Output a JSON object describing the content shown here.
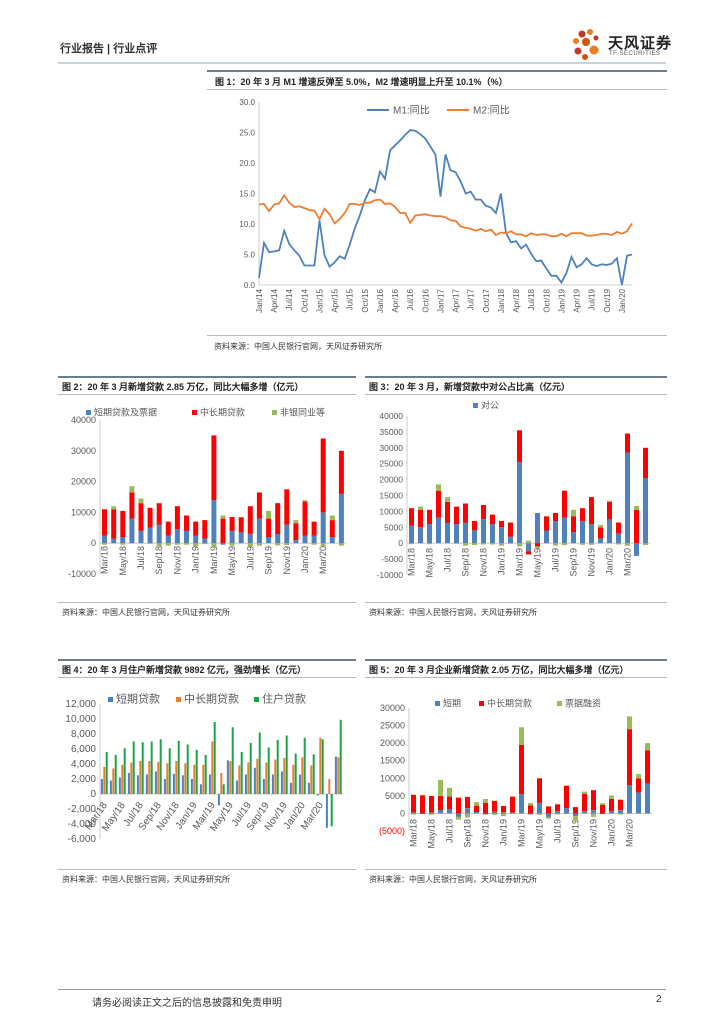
{
  "header": {
    "left": "行业报告 | 行业点评",
    "logo_text": "天风证券",
    "logo_sub": "TF SECURITIES"
  },
  "source_text": "资料来源：中国人民银行官网，天风证券研究所",
  "footer": {
    "disclaimer": "请务必阅读正文之后的信息披露和免责申明",
    "page": "2"
  },
  "colors": {
    "blue": "#4e81bd",
    "orange": "#ed7d31",
    "red": "#ff0000",
    "green": "#9bbb59",
    "dgreen": "#1ba34a"
  },
  "chart_data": [
    {
      "id": "fig1",
      "type": "line",
      "title": "图 1：20 年 3 月 M1 增速反弹至 5.0%，M2 增速明显上升至 10.1%（%）",
      "ylim": [
        0,
        30
      ],
      "yticks": [
        "0.0",
        "5.0",
        "10.0",
        "15.0",
        "20.0",
        "25.0",
        "30.0"
      ],
      "xticks": [
        "Jan/14",
        "Apr/14",
        "Jul/14",
        "Oct/14",
        "Jan/15",
        "Apr/15",
        "Jul/15",
        "Oct/15",
        "Jan/16",
        "Apr/16",
        "Jul/16",
        "Oct/16",
        "Jan/17",
        "Apr/17",
        "Jul/17",
        "Oct/17",
        "Jan/18",
        "Apr/18",
        "Jul/18",
        "Oct/18",
        "Jan/19",
        "Apr/19",
        "Jul/19",
        "Oct/19",
        "Jan/20"
      ],
      "legend": "top",
      "series": [
        {
          "name": "M1:同比",
          "color": "#4e81bd",
          "values": [
            1.2,
            6.9,
            5.4,
            5.5,
            5.7,
            8.9,
            6.7,
            5.7,
            4.8,
            3.2,
            3.2,
            3.2,
            10.6,
            4.9,
            3.0,
            3.7,
            4.7,
            4.3,
            6.6,
            9.3,
            11.4,
            13.9,
            15.7,
            15.2,
            18.6,
            17.4,
            22.1,
            22.9,
            23.7,
            24.6,
            25.4,
            25.3,
            24.7,
            24.0,
            22.7,
            21.4,
            14.5,
            21.4,
            18.8,
            18.5,
            17.0,
            15.0,
            15.3,
            14.0,
            14.0,
            13.0,
            12.7,
            11.8,
            15.0,
            8.5,
            7.0,
            7.2,
            6.0,
            6.6,
            5.1,
            3.9,
            4.0,
            2.7,
            1.5,
            1.5,
            0.4,
            2.0,
            4.6,
            2.9,
            3.4,
            4.4,
            3.4,
            3.1,
            3.4,
            3.3,
            3.5,
            4.4,
            0.0,
            4.8,
            5.0
          ]
        },
        {
          "name": "M2:同比",
          "color": "#ed7d31",
          "values": [
            13.2,
            13.3,
            12.1,
            13.2,
            13.4,
            14.7,
            13.5,
            12.8,
            12.9,
            12.6,
            12.3,
            12.2,
            10.8,
            12.5,
            11.6,
            10.1,
            10.8,
            11.8,
            13.3,
            13.3,
            13.1,
            13.5,
            13.5,
            13.9,
            14.0,
            13.3,
            13.4,
            12.8,
            11.8,
            11.8,
            10.2,
            11.4,
            11.5,
            11.6,
            11.4,
            11.3,
            11.3,
            11.1,
            10.6,
            10.5,
            9.6,
            9.4,
            9.2,
            8.9,
            9.2,
            8.8,
            9.1,
            8.2,
            8.6,
            8.5,
            8.8,
            8.3,
            8.3,
            8.0,
            8.5,
            8.2,
            8.3,
            8.3,
            8.0,
            8.0,
            8.4,
            8.0,
            8.5,
            8.5,
            8.5,
            8.1,
            8.1,
            8.2,
            8.4,
            8.4,
            8.2,
            8.7,
            8.4,
            8.8,
            10.1
          ]
        }
      ]
    },
    {
      "id": "fig2",
      "type": "bar",
      "title": "图 2：20 年 3 月新增贷款 2.85 万亿，同比大幅多增（亿元）",
      "ylim": [
        -10000,
        40000
      ],
      "yticks": [
        "-10000",
        "0",
        "10000",
        "20000",
        "30000",
        "40000"
      ],
      "xticks": [
        "Mar/18",
        "May/18",
        "Jul/18",
        "Sep/18",
        "Nov/18",
        "Jan/19",
        "Mar/19",
        "May/19",
        "Jul/19",
        "Sep/19",
        "Nov/19",
        "Jan/20",
        "Mar/20"
      ],
      "legend": "top",
      "series": [
        {
          "name": "短期贷款及票据",
          "color": "#4e81bd",
          "values": [
            2500,
            1500,
            2000,
            8000,
            4000,
            5000,
            6000,
            2500,
            4500,
            4000,
            2500,
            1500,
            14000,
            -500,
            4000,
            3500,
            3000,
            8000,
            2000,
            3000,
            6000,
            1000,
            2500,
            2500,
            10000,
            2000,
            16000
          ]
        },
        {
          "name": "中长期贷款",
          "color": "#ff0000",
          "values": [
            8500,
            9500,
            8500,
            8500,
            9000,
            6500,
            7000,
            4500,
            7500,
            5000,
            4500,
            6000,
            21000,
            8000,
            4500,
            5000,
            9000,
            8500,
            6000,
            10000,
            11500,
            5500,
            11000,
            4500,
            24000,
            5500,
            14000
          ]
        },
        {
          "name": "非银同业等",
          "color": "#9bbb59",
          "values": [
            -500,
            1000,
            -500,
            2000,
            1500,
            -200,
            -1000,
            -800,
            -500,
            -500,
            -1000,
            -300,
            -1200,
            1000,
            -800,
            0,
            -1000,
            -800,
            2500,
            -700,
            -600,
            1000,
            500,
            -500,
            -1000,
            1500,
            -800
          ]
        }
      ]
    },
    {
      "id": "fig3",
      "type": "bar",
      "title": "图 3：20 年 3 月，新增贷款中对公占比高（亿元）",
      "ylim": [
        -10000,
        40000
      ],
      "yticks": [
        "-10000",
        "-5000",
        "0",
        "5000",
        "10000",
        "15000",
        "20000",
        "25000",
        "30000",
        "35000",
        "40000"
      ],
      "xticks": [
        "Mar/18",
        "May/18",
        "Jul/18",
        "Sep/18",
        "Nov/18",
        "Jan/19",
        "Mar/19",
        "May/19",
        "Jul/19",
        "Sep/19",
        "Nov/19",
        "Jan/20",
        "Mar/20"
      ],
      "legend": "top",
      "series": [
        {
          "name": "对公",
          "color": "#4e81bd",
          "values": [
            5500,
            5000,
            6000,
            8000,
            6500,
            6000,
            6500,
            4000,
            7500,
            6000,
            5000,
            2000,
            25500,
            -2500,
            9500,
            4000,
            7000,
            8000,
            3500,
            7000,
            6000,
            1500,
            7500,
            3000,
            28500,
            -4000,
            20500
          ]
        },
        {
          "name": "",
          "color": "#ff0000",
          "values": [
            5500,
            5500,
            4500,
            8500,
            6500,
            5500,
            6000,
            3000,
            4500,
            3000,
            2000,
            4500,
            10000,
            -1000,
            -1000,
            4500,
            2500,
            8500,
            5000,
            4000,
            8500,
            3500,
            5500,
            3500,
            6000,
            10500,
            9500
          ]
        },
        {
          "name": "",
          "color": "#9bbb59",
          "values": [
            -300,
            1000,
            -300,
            2000,
            1500,
            -200,
            -800,
            -600,
            -400,
            -400,
            -800,
            -200,
            -1000,
            800,
            -600,
            0,
            -800,
            -600,
            2000,
            -500,
            -500,
            800,
            400,
            -400,
            -800,
            1200,
            -600
          ]
        }
      ]
    },
    {
      "id": "fig4",
      "type": "bar",
      "title": "图 4：20 年 3 月住户新增贷款 9892 亿元，强劲增长（亿元）",
      "ylim": [
        -6000,
        12000
      ],
      "yticks": [
        "-6,000",
        "-4,000",
        "-2,000",
        "0",
        "2,000",
        "4,000",
        "6,000",
        "8,000",
        "10,000",
        "12,000"
      ],
      "xticks": [
        "Mar/18",
        "May/18",
        "Jul/18",
        "Sep/18",
        "Nov/18",
        "Jan/19",
        "Mar/19",
        "May/19",
        "Jul/19",
        "Sep/19",
        "Nov/19",
        "Jan/20",
        "Mar/20"
      ],
      "legend": "top",
      "series": [
        {
          "name": "短期贷款",
          "color": "#4e81bd",
          "values": [
            2000,
            1800,
            2200,
            2800,
            2500,
            2600,
            3000,
            2000,
            2700,
            2500,
            2000,
            1300,
            2600,
            -1500,
            4500,
            1800,
            2600,
            3500,
            2000,
            2600,
            3000,
            1500,
            2600,
            1500,
            -200,
            -4500,
            5000
          ]
        },
        {
          "name": "中长期贷款",
          "color": "#ed7d31",
          "values": [
            3600,
            3400,
            3900,
            4200,
            4400,
            4400,
            4300,
            4100,
            4400,
            4100,
            3900,
            3900,
            7000,
            2800,
            4400,
            3800,
            4200,
            4700,
            4200,
            4600,
            4800,
            3900,
            4900,
            3800,
            7500,
            2000,
            4900
          ]
        },
        {
          "name": "住户贷款",
          "color": "#1ba34a",
          "values": [
            5600,
            5200,
            6100,
            7000,
            6900,
            7000,
            7300,
            6100,
            7100,
            6600,
            5900,
            5200,
            9600,
            1300,
            8900,
            5600,
            6800,
            8200,
            6200,
            7200,
            7800,
            5400,
            7500,
            5300,
            7300,
            -4300,
            9900
          ]
        }
      ]
    },
    {
      "id": "fig5",
      "type": "bar",
      "title": "图 5：20 年 3 月企业新增贷款 2.05 万亿，同比大幅多增（亿元）",
      "ylim": [
        -5000,
        30000
      ],
      "yticks": [
        "(5000)",
        "0",
        "5000",
        "10000",
        "15000",
        "20000",
        "25000",
        "30000"
      ],
      "xticks": [
        "Mar/18",
        "May/18",
        "Jul/18",
        "Sep/18",
        "Nov/18",
        "Jan/19",
        "Mar/19",
        "May/19",
        "Jul/19",
        "Sep/19",
        "Nov/19",
        "Jan/20",
        "Mar/20"
      ],
      "legend": "top",
      "series": [
        {
          "name": "短期",
          "color": "#4e81bd",
          "values": [
            300,
            -200,
            300,
            1000,
            1200,
            -1000,
            1500,
            400,
            -300,
            500,
            300,
            300,
            5500,
            -300,
            3000,
            -1000,
            600,
            1500,
            -800,
            600,
            900,
            -200,
            600,
            900,
            8000,
            6000,
            8500
          ]
        },
        {
          "name": "中长期贷款",
          "color": "#ff0000",
          "values": [
            5000,
            5100,
            4700,
            4000,
            3600,
            4500,
            3200,
            1800,
            3000,
            3100,
            1800,
            4500,
            14000,
            2300,
            7000,
            2000,
            2000,
            6400,
            1800,
            5000,
            5700,
            2400,
            3500,
            3000,
            16000,
            4000,
            9500
          ]
        },
        {
          "name": "票据融资",
          "color": "#9bbb59",
          "values": [
            -300,
            200,
            -400,
            4500,
            2500,
            -800,
            -1200,
            1000,
            1100,
            -400,
            -800,
            -200,
            5000,
            700,
            -400,
            -500,
            -300,
            -200,
            -1500,
            600,
            -1000,
            500,
            1000,
            -300,
            3600,
            1200,
            2000
          ]
        }
      ]
    }
  ]
}
